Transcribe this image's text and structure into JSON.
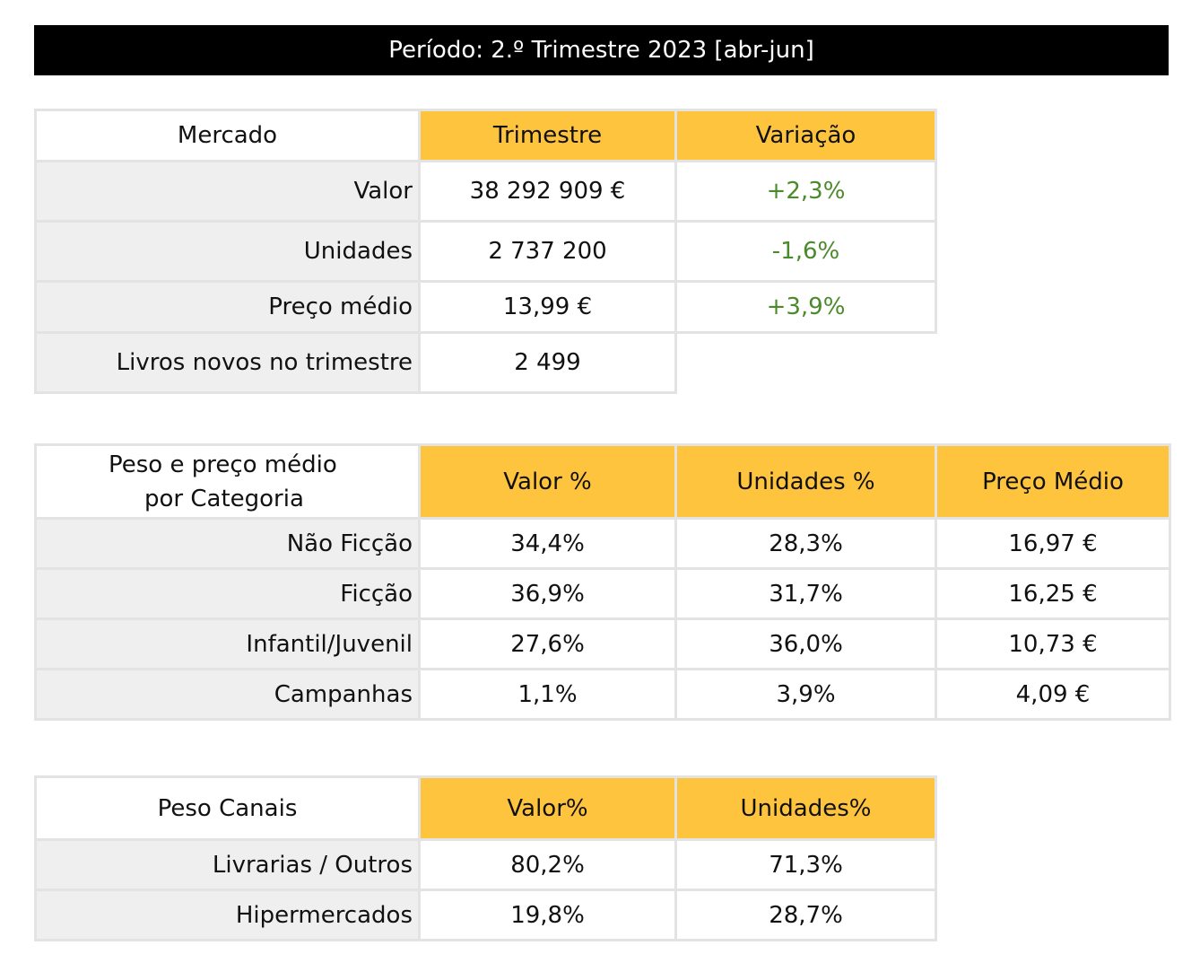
{
  "banner": {
    "title": "Período: 2.º Trimestre 2023 [abr-jun]"
  },
  "mercado": {
    "headers": [
      "Mercado",
      "Trimestre",
      "Variação"
    ],
    "rows": [
      {
        "label": "Valor",
        "trimestre": "38 292 909 €",
        "variacao": "+2,3%"
      },
      {
        "label": "Unidades",
        "trimestre": "2 737 200",
        "variacao": "-1,6%"
      },
      {
        "label": "Preço médio",
        "trimestre": "13,99 €",
        "variacao": "+3,9%"
      },
      {
        "label": "Livros novos no trimestre",
        "trimestre": "2 499",
        "variacao": ""
      }
    ]
  },
  "categoria": {
    "corner_line1": "Peso e preço médio",
    "corner_line2": "por Categoria",
    "headers": [
      "Valor %",
      "Unidades %",
      "Preço Médio"
    ],
    "rows": [
      {
        "label": "Não Ficção",
        "valor": "34,4%",
        "unidades": "28,3%",
        "preco": "16,97 €"
      },
      {
        "label": "Ficção",
        "valor": "36,9%",
        "unidades": "31,7%",
        "preco": "16,25 €"
      },
      {
        "label": "Infantil/Juvenil",
        "valor": "27,6%",
        "unidades": "36,0%",
        "preco": "10,73 €"
      },
      {
        "label": "Campanhas",
        "valor": "1,1%",
        "unidades": "3,9%",
        "preco": "4,09 €"
      }
    ]
  },
  "canais": {
    "headers": [
      "Peso Canais",
      "Valor%",
      "Unidades%"
    ],
    "rows": [
      {
        "label": "Livrarias / Outros",
        "valor": "80,2%",
        "unidades": "71,3%"
      },
      {
        "label": "Hipermercados",
        "valor": "19,8%",
        "unidades": "28,7%"
      }
    ]
  },
  "colors": {
    "header_fill": "#ffc43d",
    "label_fill": "#efefef",
    "positive_text": "#4a8a2a",
    "banner_fill": "#000000"
  }
}
